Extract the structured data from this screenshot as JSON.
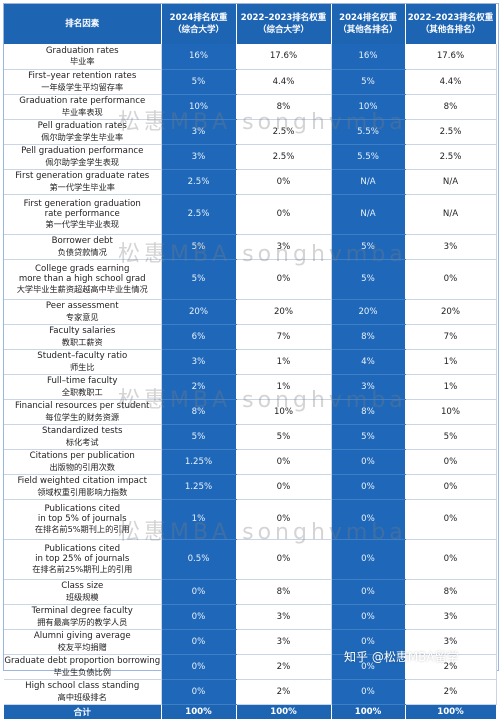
{
  "headers": [
    {
      "line1": "排名因素",
      "line2": ""
    },
    {
      "line1": "2024排名权重",
      "line2": "（综合大学）"
    },
    {
      "line1": "2022–2023排名权重",
      "line2": "（综合大学）"
    },
    {
      "line1": "2024排名权重",
      "line2": "（其他各排名）"
    },
    {
      "line1": "2022–2023排名权重",
      "line2": "（其他各排名）"
    }
  ],
  "rows": [
    {
      "en": [
        "Graduation rates"
      ],
      "zh": "毕业率",
      "values": [
        "16%",
        "17.6%",
        "16%",
        "17.6%"
      ]
    },
    {
      "en": [
        "First–year retention rates"
      ],
      "zh": "一年级学生平均留存率",
      "values": [
        "5%",
        "4.4%",
        "5%",
        "4.4%"
      ]
    },
    {
      "en": [
        "Graduation rate performance"
      ],
      "zh": "毕业率表现",
      "values": [
        "10%",
        "8%",
        "10%",
        "8%"
      ]
    },
    {
      "en": [
        "Pell graduation rates"
      ],
      "zh": "佩尔助学金学生毕业率",
      "values": [
        "3%",
        "2.5%",
        "5.5%",
        "2.5%"
      ]
    },
    {
      "en": [
        "Pell graduation performance"
      ],
      "zh": "佩尔助学金学生表现",
      "values": [
        "3%",
        "2.5%",
        "5.5%",
        "2.5%"
      ]
    },
    {
      "en": [
        "First generation graduate rates"
      ],
      "zh": "第一代学生毕业率",
      "values": [
        "2.5%",
        "0%",
        "N/A",
        "N/A"
      ]
    },
    {
      "en": [
        "First generation graduation",
        "rate performance"
      ],
      "zh": "第一代学生毕业表现",
      "values": [
        "2.5%",
        "0%",
        "N/A",
        "N/A"
      ]
    },
    {
      "en": [
        "Borrower debt"
      ],
      "zh": "负债贷款情况",
      "values": [
        "5%",
        "3%",
        "5%",
        "3%"
      ]
    },
    {
      "en": [
        "College grads earning",
        "more than a high school grad"
      ],
      "zh": "大学毕业生薪资超越高中毕业生情况",
      "values": [
        "5%",
        "0%",
        "5%",
        "0%"
      ]
    },
    {
      "en": [
        "Peer assessment"
      ],
      "zh": "专家意见",
      "values": [
        "20%",
        "20%",
        "20%",
        "20%"
      ]
    },
    {
      "en": [
        "Faculty salaries"
      ],
      "zh": "教职工薪资",
      "values": [
        "6%",
        "7%",
        "8%",
        "7%"
      ]
    },
    {
      "en": [
        "Student–faculty ratio"
      ],
      "zh": "师生比",
      "values": [
        "3%",
        "1%",
        "4%",
        "1%"
      ]
    },
    {
      "en": [
        "Full–time faculty"
      ],
      "zh": "全职教职工",
      "values": [
        "2%",
        "1%",
        "3%",
        "1%"
      ]
    },
    {
      "en": [
        "Financial resources per student"
      ],
      "zh": "每位学生的财务资源",
      "values": [
        "8%",
        "10%",
        "8%",
        "10%"
      ]
    },
    {
      "en": [
        "Standardized tests"
      ],
      "zh": "标化考试",
      "values": [
        "5%",
        "5%",
        "5%",
        "5%"
      ]
    },
    {
      "en": [
        "Citations per publication"
      ],
      "zh": "出版物的引用次数",
      "values": [
        "1.25%",
        "0%",
        "0%",
        "0%"
      ]
    },
    {
      "en": [
        "Field weighted citation impact"
      ],
      "zh": "领域权重引用影响力指数",
      "values": [
        "1.25%",
        "0%",
        "0%",
        "0%"
      ]
    },
    {
      "en": [
        "Publications cited",
        "in top 5% of journals"
      ],
      "zh": "在排名前5%期刊上的引用",
      "values": [
        "1%",
        "0%",
        "0%",
        "0%"
      ]
    },
    {
      "en": [
        "Publications cited",
        "in top 25% of journals"
      ],
      "zh": "在排名前25%期刊上的引用",
      "values": [
        "0.5%",
        "0%",
        "0%",
        "0%"
      ]
    },
    {
      "en": [
        "Class size"
      ],
      "zh": "班级规模",
      "values": [
        "0%",
        "8%",
        "0%",
        "8%"
      ]
    },
    {
      "en": [
        "Terminal degree faculty"
      ],
      "zh": "拥有最高学历的教学人员",
      "values": [
        "0%",
        "3%",
        "0%",
        "3%"
      ]
    },
    {
      "en": [
        "Alumni giving average"
      ],
      "zh": "校友平均捐赠",
      "values": [
        "0%",
        "3%",
        "0%",
        "3%"
      ]
    },
    {
      "en": [
        "Graduate debt proportion borrowing"
      ],
      "zh": "毕业生负债比例",
      "values": [
        "0%",
        "2%",
        "0%",
        "2%"
      ]
    },
    {
      "en": [
        "High school class standing"
      ],
      "zh": "高中班级排名",
      "values": [
        "0%",
        "2%",
        "0%",
        "2%"
      ]
    }
  ],
  "total": {
    "label": "合计",
    "values": [
      "100%",
      "100%",
      "100%",
      "100%"
    ]
  },
  "watermark": "松惠MBA songhvmba",
  "corner_watermark": "知乎 @松惠MBA留学",
  "colors": {
    "header_blue": "#1d64b3",
    "cell_blue": "#1f68b9",
    "border": "#c9d6e8"
  }
}
